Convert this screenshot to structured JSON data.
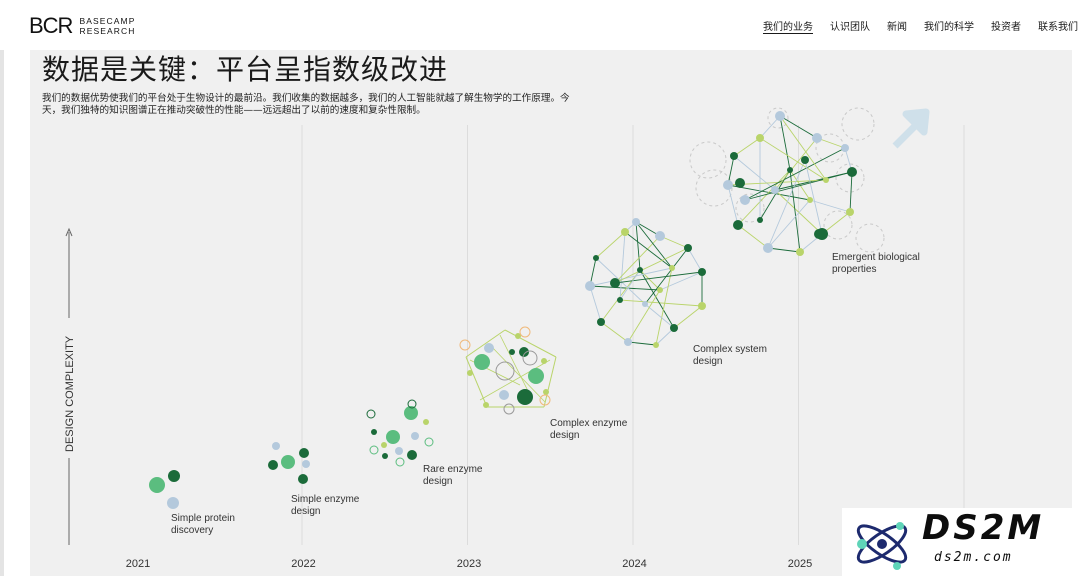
{
  "header": {
    "logo_mark": "BCR",
    "logo_line1": "BASECAMP",
    "logo_line2": "RESEARCH",
    "nav": [
      {
        "label": "我们的业务",
        "active": true
      },
      {
        "label": "认识团队",
        "active": false
      },
      {
        "label": "新闻",
        "active": false
      },
      {
        "label": "我们的科学",
        "active": false
      },
      {
        "label": "投资者",
        "active": false
      },
      {
        "label": "联系我们",
        "active": false
      }
    ]
  },
  "page": {
    "headline": "数据是关键：平台呈指数级改进",
    "intro": "我们的数据优势使我们的平台处于生物设计的最前沿。我们收集的数据越多，我们的人工智能就越了解生物学的工作原理。今天，我们独特的知识图谱正在推动突破性的性能——远远超出了以前的速度和复杂性限制。"
  },
  "chart_data": {
    "type": "scatter",
    "ylabel": "DESIGN COMPLEXITY",
    "x_ticks": [
      "2021",
      "2022",
      "2023",
      "2024",
      "2025"
    ],
    "milestones": [
      {
        "year": 2021.0,
        "line1": "Simple protein",
        "line2": "discovery"
      },
      {
        "year": 2022.0,
        "line1": "Simple enzyme",
        "line2": "design"
      },
      {
        "year": 2022.8,
        "line1": "Rare enzyme",
        "line2": "design"
      },
      {
        "year": 2023.2,
        "line1": "Complex enzyme",
        "line2": "design"
      },
      {
        "year": 2024.3,
        "line1": "Complex system",
        "line2": "design"
      },
      {
        "year": 2025.3,
        "line1": "Emergent biological",
        "line2": "properties"
      }
    ],
    "grid": true,
    "colors": {
      "dark": "#1b6b3a",
      "mid": "#5bbd7f",
      "light": "#b9d46a",
      "blue": "#b4c9dc",
      "orange": "#f0b97a"
    }
  },
  "watermark": {
    "title": "DS2M",
    "subtitle": "ds2m.com"
  }
}
